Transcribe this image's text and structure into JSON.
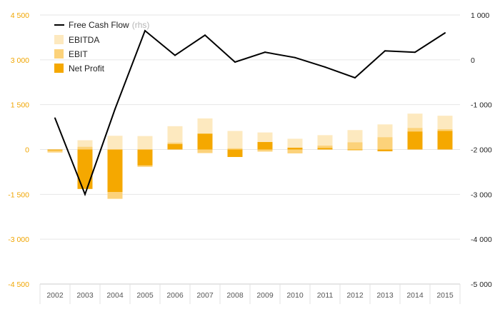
{
  "chart_data": {
    "type": "bar",
    "categories": [
      "2002",
      "2003",
      "2004",
      "2005",
      "2006",
      "2007",
      "2008",
      "2009",
      "2010",
      "2011",
      "2012",
      "2013",
      "2014",
      "2015"
    ],
    "series": [
      {
        "name": "EBITDA",
        "kind": "bar",
        "axis": "left",
        "color": "#fde9bf",
        "values": [
          -60,
          310,
          460,
          450,
          780,
          1040,
          620,
          570,
          360,
          480,
          650,
          840,
          1200,
          1130
        ]
      },
      {
        "name": "EBIT",
        "kind": "bar",
        "axis": "left",
        "color": "#fcd27a",
        "values": [
          -100,
          90,
          -1650,
          -580,
          230,
          -120,
          40,
          -70,
          -130,
          130,
          240,
          410,
          720,
          680
        ]
      },
      {
        "name": "Net Profit",
        "kind": "bar",
        "axis": "left",
        "color": "#f5a800",
        "values": [
          -30,
          -1320,
          -1420,
          -530,
          180,
          530,
          -250,
          250,
          60,
          50,
          -20,
          -60,
          600,
          620
        ]
      },
      {
        "name": "Free Cash Flow",
        "name_suffix": "(rhs)",
        "kind": "line",
        "axis": "right",
        "color": "#000000",
        "values": [
          -1300,
          -3000,
          -1100,
          650,
          100,
          550,
          -50,
          170,
          50,
          -160,
          -400,
          200,
          170,
          600
        ]
      }
    ],
    "ylim_left": [
      -4500,
      4500
    ],
    "yticks_left": [
      -4500,
      -3000,
      -1500,
      0,
      1500,
      3000,
      4500
    ],
    "yticklabels_left": [
      "-4 500",
      "-3 000",
      "-1 500",
      "0",
      "1 500",
      "3 000",
      "4 500"
    ],
    "ylim_right": [
      -5000,
      1000
    ],
    "yticks_right": [
      -5000,
      -4000,
      -3000,
      -2000,
      -1000,
      0,
      1000
    ],
    "yticklabels_right": [
      "-5 000",
      "-4 000",
      "-3 000",
      "-2 000",
      "-1 000",
      "0",
      "1 000"
    ],
    "grid": true,
    "legend_position": "top-left",
    "colors": {
      "left_axis_text": "#f0a500",
      "right_axis_text": "#222222",
      "grid": "#e6e6e6"
    }
  }
}
